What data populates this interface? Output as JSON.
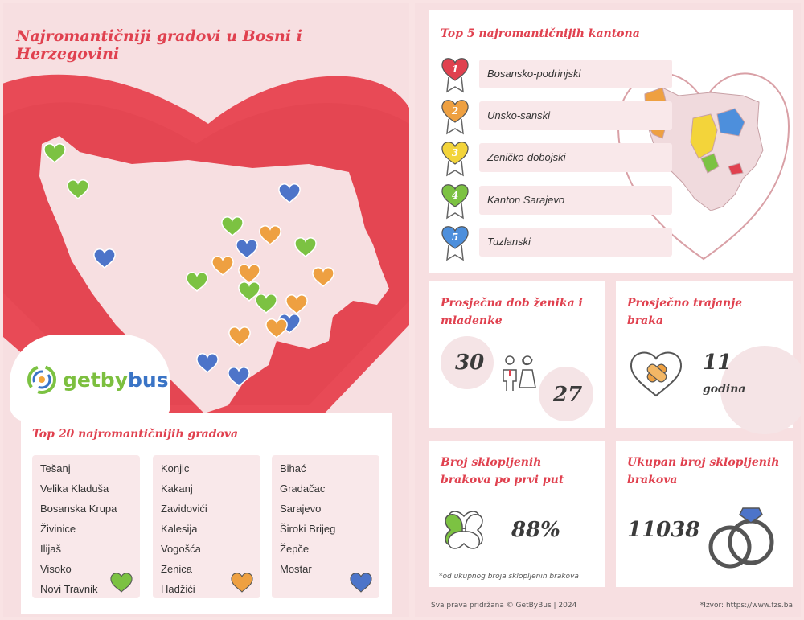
{
  "left": {
    "title": "Najromantičniji gradovi u Bosni i Herzegovini",
    "logo": {
      "text_a": "getby",
      "text_b": "bus"
    },
    "top20": {
      "title": "Top 20 najromantičnijih gradova",
      "columns": [
        {
          "cities": [
            "Tešanj",
            "Velika Kladuša",
            "Bosanska Krupa",
            "Živinice",
            "Ilijaš",
            "Visoko",
            "Novi Travnik"
          ],
          "heart_color": "#7cc242"
        },
        {
          "cities": [
            "Konjic",
            "Kakanj",
            "Zavidovići",
            "Kalesija",
            "Vogošća",
            "Zenica",
            "Hadžići"
          ],
          "heart_color": "#eea041"
        },
        {
          "cities": [
            "Bihać",
            "Gradačac",
            "Sarajevo",
            "Široki Brijeg",
            "Žepče",
            "Mostar"
          ],
          "heart_color": "#4d74c9"
        }
      ]
    }
  },
  "right": {
    "kantoni": {
      "title": "Top 5 najromantičnijih kantona",
      "items": [
        {
          "rank": "1",
          "name": "Bosansko-podrinjski",
          "color": "#e0414f"
        },
        {
          "rank": "2",
          "name": "Unsko-sanski",
          "color": "#eea041"
        },
        {
          "rank": "3",
          "name": "Zeničko-dobojski",
          "color": "#f3d43a"
        },
        {
          "rank": "4",
          "name": "Kanton Sarajevo",
          "color": "#7cc242"
        },
        {
          "rank": "5",
          "name": "Tuzlanski",
          "color": "#4d8fdc"
        }
      ]
    },
    "dob": {
      "title": "Prosječna dob ženika i mladenke",
      "groom": "30",
      "bride": "27"
    },
    "trajanje": {
      "title": "Prosječno trajanje braka",
      "value": "11",
      "unit": "godina"
    },
    "prvi_put": {
      "title": "Broj sklopljenih brakova po prvi put",
      "value": "88%",
      "note": "*od ukupnog broja sklopljenih brakova"
    },
    "ukupno": {
      "title": "Ukupan broj sklopljenih brakova",
      "value": "11038"
    },
    "footer_left": "Sva prava pridržana © GetByBus | 2024",
    "footer_right": "*Izvor: https://www.fzs.ba"
  },
  "colors": {
    "accent": "#e0414f",
    "heart_red": "#e84a56",
    "map_fill": "#f7dfe1"
  }
}
